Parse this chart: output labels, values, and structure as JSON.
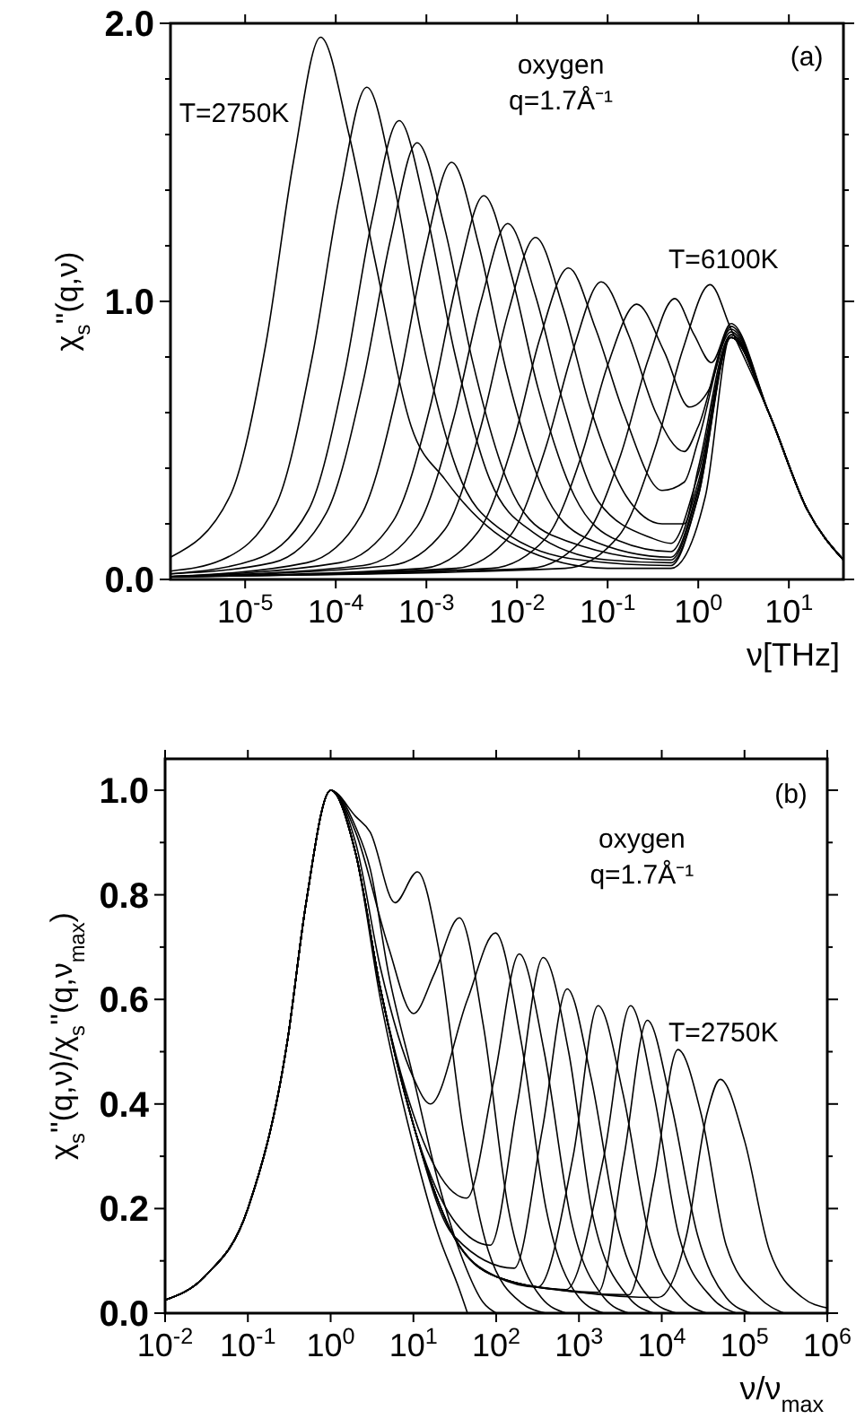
{
  "chart_data": [
    {
      "type": "line",
      "xlabel": "ν[THz]",
      "ylabel": "χ$_{s}$''(q,ν)",
      "log": "x",
      "xlim": [
        1.5e-06,
        40
      ],
      "ylim": [
        0,
        2
      ],
      "xticks": [
        {
          "value": 1e-05,
          "label": "10$^{-5}$"
        },
        {
          "value": 0.0001,
          "label": "10$^{-4}$"
        },
        {
          "value": 0.001,
          "label": "10$^{-3}$"
        },
        {
          "value": 0.01,
          "label": "10$^{-2}$"
        },
        {
          "value": 0.1,
          "label": "10$^{-1}$"
        },
        {
          "value": 1,
          "label": "10$^{0}$"
        },
        {
          "value": 10,
          "label": "10$^{1}$"
        }
      ],
      "yticks": [
        {
          "value": 0,
          "label": "0.0"
        },
        {
          "value": 0.2,
          "label": null
        },
        {
          "value": 0.4,
          "label": null
        },
        {
          "value": 0.6,
          "label": null
        },
        {
          "value": 0.8,
          "label": null
        },
        {
          "value": 1,
          "label": "1.0"
        },
        {
          "value": 1.2,
          "label": null
        },
        {
          "value": 1.4,
          "label": null
        },
        {
          "value": 1.6,
          "label": null
        },
        {
          "value": 1.8,
          "label": null
        },
        {
          "value": 2,
          "label": "2.0"
        }
      ],
      "annotations": [
        "oxygen",
        "q=1.7Å⁻¹",
        "(a)",
        "T=2750K",
        "T=6100K"
      ],
      "series": [
        {
          "color": "#000000",
          "x": [
            1.5e-06,
            6.8e-06,
            1.7e-05,
            3.4e-05,
            6.8e-05,
            0.00014,
            0.00027,
            0.00068,
            0.0016,
            0.01,
            0.1,
            0.5,
            1.2,
            2.3,
            6,
            16,
            40
          ],
          "values": [
            0.08,
            0.3,
            0.85,
            1.5,
            1.95,
            1.6,
            1.15,
            0.55,
            0.36,
            0.12,
            0.04,
            0.04,
            0.3,
            0.88,
            0.6,
            0.25,
            0.07
          ]
        },
        {
          "color": "#000000",
          "x": [
            1.5e-06,
            5.5e-06,
            2.2e-05,
            5.5e-05,
            0.00011,
            0.00022,
            0.00044,
            0.00088,
            0.0022,
            0.0066,
            0.05,
            0.5,
            1,
            2.3,
            6,
            16,
            40
          ],
          "values": [
            0.03,
            0.07,
            0.27,
            0.8,
            1.38,
            1.77,
            1.42,
            0.88,
            0.39,
            0.18,
            0.07,
            0.05,
            0.3,
            0.88,
            0.6,
            0.25,
            0.07
          ]
        },
        {
          "color": "#000000",
          "x": [
            1.5e-06,
            1.25e-05,
            5e-05,
            0.000125,
            0.00025,
            0.0005,
            0.001,
            0.002,
            0.005,
            0.015,
            0.1,
            0.5,
            1,
            2.3,
            6,
            16,
            40
          ],
          "values": [
            0.02,
            0.07,
            0.25,
            0.74,
            1.29,
            1.65,
            1.32,
            0.83,
            0.36,
            0.17,
            0.07,
            0.06,
            0.3,
            0.87,
            0.6,
            0.25,
            0.07
          ]
        },
        {
          "color": "#000000",
          "x": [
            1.5e-06,
            2e-05,
            7.9e-05,
            0.0002,
            0.0004,
            0.00079,
            0.0016,
            0.0032,
            0.0079,
            0.024,
            0.5,
            1,
            2.3,
            6,
            16,
            40
          ],
          "values": [
            0.02,
            0.06,
            0.24,
            0.71,
            1.22,
            1.57,
            1.26,
            0.79,
            0.35,
            0.16,
            0.07,
            0.32,
            0.87,
            0.6,
            0.25,
            0.07
          ]
        },
        {
          "color": "#000000",
          "x": [
            1.5e-06,
            4.8e-05,
            0.00019,
            0.00048,
            0.00095,
            0.0019,
            0.0038,
            0.0076,
            0.019,
            0.057,
            0.5,
            1,
            2.3,
            6,
            16,
            40
          ],
          "values": [
            0.01,
            0.06,
            0.23,
            0.68,
            1.17,
            1.5,
            1.2,
            0.75,
            0.33,
            0.15,
            0.08,
            0.33,
            0.87,
            0.6,
            0.25,
            0.07
          ]
        },
        {
          "color": "#000000",
          "x": [
            1.5e-06,
            0.00011,
            0.00043,
            0.0011,
            0.0022,
            0.0043,
            0.0086,
            0.017,
            0.043,
            0.13,
            0.5,
            1,
            2.3,
            6,
            16,
            40
          ],
          "values": [
            0.01,
            0.06,
            0.21,
            0.62,
            1.08,
            1.38,
            1.1,
            0.69,
            0.3,
            0.14,
            0.1,
            0.35,
            0.87,
            0.6,
            0.25,
            0.07
          ]
        },
        {
          "color": "#000000",
          "x": [
            1.5e-06,
            0.0002,
            0.00079,
            0.002,
            0.004,
            0.0079,
            0.016,
            0.032,
            0.079,
            0.3,
            0.5,
            1,
            2.3,
            6,
            16,
            40
          ],
          "values": [
            0.01,
            0.05,
            0.19,
            0.58,
            1.0,
            1.28,
            1.02,
            0.64,
            0.28,
            0.15,
            0.13,
            0.38,
            0.87,
            0.6,
            0.25,
            0.07
          ]
        },
        {
          "color": "#000000",
          "x": [
            1.5e-06,
            0.0004,
            0.0016,
            0.004,
            0.008,
            0.016,
            0.032,
            0.064,
            0.16,
            0.4,
            0.7,
            1,
            2.3,
            6,
            16,
            40
          ],
          "values": [
            0.01,
            0.05,
            0.18,
            0.55,
            0.96,
            1.23,
            0.98,
            0.62,
            0.3,
            0.2,
            0.2,
            0.4,
            0.88,
            0.6,
            0.25,
            0.07
          ]
        },
        {
          "color": "#000000",
          "x": [
            1.5e-06,
            0.00092,
            0.0037,
            0.0092,
            0.018,
            0.037,
            0.074,
            0.15,
            0.4,
            0.7,
            1,
            2.3,
            6,
            16,
            40
          ],
          "values": [
            0.01,
            0.04,
            0.17,
            0.5,
            0.87,
            1.12,
            0.9,
            0.6,
            0.32,
            0.35,
            0.5,
            0.89,
            0.6,
            0.25,
            0.07
          ]
        },
        {
          "color": "#000000",
          "x": [
            1.5e-06,
            0.0021,
            0.0085,
            0.021,
            0.042,
            0.085,
            0.17,
            0.34,
            0.7,
            1,
            2.3,
            6,
            16,
            40
          ],
          "values": [
            0.01,
            0.04,
            0.16,
            0.48,
            0.83,
            1.07,
            0.88,
            0.6,
            0.46,
            0.55,
            0.9,
            0.6,
            0.25,
            0.07
          ]
        },
        {
          "color": "#000000",
          "x": [
            1.5e-06,
            0.0052,
            0.021,
            0.052,
            0.1,
            0.21,
            0.42,
            0.8,
            1.3,
            2.3,
            6,
            16,
            40
          ],
          "values": [
            0.01,
            0.04,
            0.15,
            0.45,
            0.77,
            0.99,
            0.82,
            0.62,
            0.68,
            0.91,
            0.6,
            0.25,
            0.07
          ]
        },
        {
          "color": "#000000",
          "x": [
            1.5e-06,
            0.014,
            0.055,
            0.14,
            0.28,
            0.55,
            0.9,
            1.4,
            2.3,
            6,
            16,
            40
          ],
          "values": [
            0.01,
            0.04,
            0.15,
            0.45,
            0.79,
            1.01,
            0.88,
            0.78,
            0.92,
            0.6,
            0.25,
            0.07
          ]
        },
        {
          "color": "#000000",
          "x": [
            1.5e-06,
            0.034,
            0.135,
            0.34,
            0.68,
            1.35,
            2.3,
            6,
            16,
            40
          ],
          "values": [
            0.01,
            0.04,
            0.16,
            0.48,
            0.83,
            1.06,
            0.9,
            0.6,
            0.25,
            0.07
          ]
        }
      ]
    },
    {
      "type": "line",
      "xlabel": "ν/ν$_{max}$",
      "ylabel": "χ$_{s}$''(q,ν)/χ$_{s}$''(q,ν$_{max}$)",
      "log": "x",
      "xlim": [
        0.01,
        1000000
      ],
      "ylim": [
        0,
        1.06
      ],
      "xticks": [
        {
          "value": 0.01,
          "label": "10$^{-2}$"
        },
        {
          "value": 0.1,
          "label": "10$^{-1}$"
        },
        {
          "value": 1,
          "label": "10$^{0}$"
        },
        {
          "value": 10,
          "label": "10$^{1}$"
        },
        {
          "value": 100,
          "label": "10$^{2}$"
        },
        {
          "value": 1000,
          "label": "10$^{3}$"
        },
        {
          "value": 10000,
          "label": "10$^{4}$"
        },
        {
          "value": 100000,
          "label": "10$^{5}$"
        },
        {
          "value": 1000000,
          "label": "10$^{6}$"
        }
      ],
      "yticks": [
        {
          "value": 0,
          "label": "0.0"
        },
        {
          "value": 0.1,
          "label": null
        },
        {
          "value": 0.2,
          "label": "0.2"
        },
        {
          "value": 0.3,
          "label": null
        },
        {
          "value": 0.4,
          "label": "0.4"
        },
        {
          "value": 0.5,
          "label": null
        },
        {
          "value": 0.6,
          "label": "0.6"
        },
        {
          "value": 0.7,
          "label": null
        },
        {
          "value": 0.8,
          "label": "0.8"
        },
        {
          "value": 0.9,
          "label": null
        },
        {
          "value": 1,
          "label": "1.0"
        }
      ],
      "annotations": [
        "oxygen",
        "q=1.7Å⁻¹",
        "(b)",
        "T=2750K"
      ],
      "series": [
        {
          "color": "#000000",
          "x": [
            0.01,
            0.03,
            0.1,
            0.3,
            0.5,
            1,
            2,
            4,
            10,
            30,
            100,
            1000,
            9000,
            20000,
            35000,
            51000,
            100000,
            200000,
            500000,
            1000000
          ],
          "values": [
            0.025,
            0.07,
            0.2,
            0.52,
            0.78,
            1,
            0.88,
            0.62,
            0.36,
            0.15,
            0.07,
            0.04,
            0.03,
            0.15,
            0.38,
            0.447,
            0.33,
            0.12,
            0.03,
            0.01
          ]
        },
        {
          "color": "#000000",
          "x": [
            0.01,
            0.03,
            0.1,
            0.3,
            0.5,
            1,
            2,
            4,
            10,
            30,
            100,
            1000,
            4000,
            8000,
            15700,
            30000,
            60000,
            150000,
            300000
          ],
          "values": [
            0.025,
            0.07,
            0.2,
            0.52,
            0.78,
            1,
            0.88,
            0.62,
            0.36,
            0.15,
            0.07,
            0.04,
            0.035,
            0.25,
            0.504,
            0.38,
            0.13,
            0.03,
            0
          ]
        },
        {
          "color": "#000000",
          "x": [
            0.01,
            0.03,
            0.1,
            0.3,
            0.5,
            1,
            2,
            4,
            10,
            30,
            100,
            600,
            1700,
            3500,
            6700,
            13000,
            27000,
            60000,
            120000
          ],
          "values": [
            0.025,
            0.07,
            0.2,
            0.52,
            0.78,
            1,
            0.88,
            0.62,
            0.36,
            0.15,
            0.07,
            0.045,
            0.04,
            0.3,
            0.56,
            0.4,
            0.15,
            0.03,
            0
          ]
        },
        {
          "color": "#000000",
          "x": [
            0.01,
            0.03,
            0.1,
            0.3,
            0.5,
            1,
            2,
            4,
            10,
            30,
            100,
            700,
            2000,
            4200,
            8000,
            16000,
            40000,
            80000
          ],
          "values": [
            0.025,
            0.07,
            0.2,
            0.52,
            0.78,
            1,
            0.88,
            0.62,
            0.36,
            0.15,
            0.07,
            0.045,
            0.3,
            0.588,
            0.42,
            0.15,
            0.03,
            0
          ]
        },
        {
          "color": "#000000",
          "x": [
            0.01,
            0.03,
            0.1,
            0.3,
            0.5,
            1,
            2,
            4,
            10,
            30,
            100,
            320,
            850,
            1700,
            3400,
            7000,
            17000,
            35000
          ],
          "values": [
            0.025,
            0.07,
            0.2,
            0.52,
            0.78,
            1,
            0.88,
            0.62,
            0.36,
            0.15,
            0.07,
            0.05,
            0.3,
            0.588,
            0.42,
            0.15,
            0.03,
            0
          ]
        },
        {
          "color": "#000000",
          "x": [
            0.01,
            0.03,
            0.1,
            0.3,
            0.5,
            1,
            2,
            4,
            10,
            30,
            165,
            360,
            720,
            1400,
            3000,
            7000,
            15000
          ],
          "values": [
            0.025,
            0.07,
            0.2,
            0.52,
            0.78,
            1,
            0.88,
            0.62,
            0.36,
            0.15,
            0.086,
            0.35,
            0.62,
            0.45,
            0.16,
            0.03,
            0
          ]
        },
        {
          "color": "#000000",
          "x": [
            0.01,
            0.03,
            0.1,
            0.3,
            0.5,
            1,
            2,
            4,
            10,
            30,
            85,
            180,
            370,
            750,
            1500,
            4000,
            8000
          ],
          "values": [
            0.025,
            0.07,
            0.2,
            0.52,
            0.78,
            1,
            0.88,
            0.62,
            0.36,
            0.18,
            0.13,
            0.4,
            0.68,
            0.5,
            0.18,
            0.03,
            0
          ]
        },
        {
          "color": "#000000",
          "x": [
            0.01,
            0.03,
            0.1,
            0.3,
            0.5,
            1,
            2,
            4,
            10,
            44,
            95,
            190,
            380,
            800,
            2000,
            4000
          ],
          "values": [
            0.025,
            0.07,
            0.2,
            0.52,
            0.78,
            1,
            0.88,
            0.62,
            0.38,
            0.22,
            0.45,
            0.687,
            0.5,
            0.18,
            0.03,
            0
          ]
        },
        {
          "color": "#000000",
          "x": [
            0.01,
            0.03,
            0.1,
            0.3,
            0.5,
            1,
            2,
            4,
            10,
            16,
            45,
            98,
            200,
            400,
            1000,
            2000
          ],
          "values": [
            0.025,
            0.07,
            0.2,
            0.52,
            0.78,
            1,
            0.9,
            0.66,
            0.45,
            0.4,
            0.6,
            0.727,
            0.52,
            0.2,
            0.03,
            0
          ]
        },
        {
          "color": "#000000",
          "x": [
            0.01,
            0.03,
            0.1,
            0.3,
            0.5,
            1,
            2,
            5,
            10,
            18,
            36,
            70,
            140,
            350,
            700
          ],
          "values": [
            0.025,
            0.07,
            0.2,
            0.52,
            0.78,
            1,
            0.92,
            0.7,
            0.573,
            0.65,
            0.756,
            0.55,
            0.2,
            0.03,
            0
          ]
        },
        {
          "color": "#000000",
          "x": [
            0.01,
            0.03,
            0.1,
            0.3,
            0.5,
            1,
            2,
            3,
            6,
            11.2,
            20,
            40,
            80,
            200,
            400
          ],
          "values": [
            0.025,
            0.07,
            0.2,
            0.52,
            0.78,
            1,
            0.95,
            0.92,
            0.785,
            0.844,
            0.7,
            0.35,
            0.12,
            0.02,
            0
          ]
        },
        {
          "color": "#000000",
          "x": [
            0.01,
            0.03,
            0.1,
            0.3,
            0.5,
            1,
            2,
            3,
            5,
            10,
            20,
            40,
            70,
            100
          ],
          "values": [
            0.025,
            0.07,
            0.2,
            0.52,
            0.78,
            1,
            0.93,
            0.85,
            0.65,
            0.45,
            0.25,
            0.1,
            0.02,
            0
          ]
        },
        {
          "color": "#000000",
          "x": [
            0.01,
            0.03,
            0.1,
            0.3,
            0.5,
            1,
            2,
            4,
            10,
            20,
            35,
            45
          ],
          "values": [
            0.025,
            0.07,
            0.2,
            0.52,
            0.78,
            1,
            0.88,
            0.6,
            0.32,
            0.15,
            0.05,
            0
          ]
        }
      ]
    }
  ]
}
